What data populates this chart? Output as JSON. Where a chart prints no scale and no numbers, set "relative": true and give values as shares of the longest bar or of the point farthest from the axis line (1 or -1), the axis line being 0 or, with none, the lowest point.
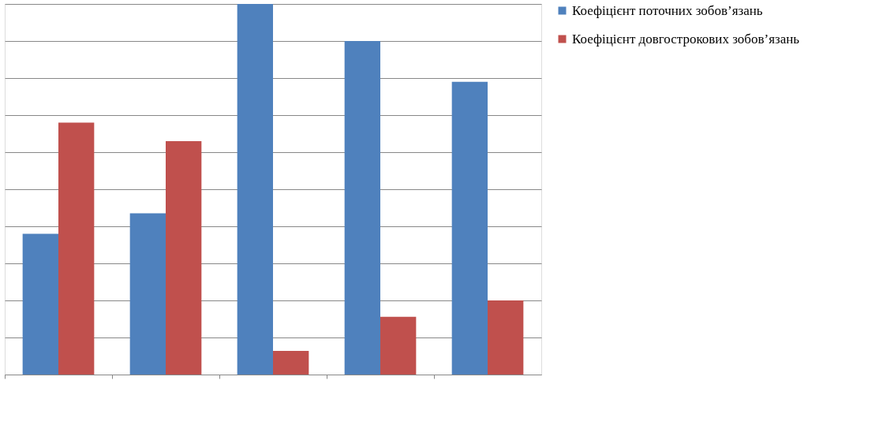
{
  "chart_data": {
    "type": "bar",
    "relative": true,
    "categories": [
      null,
      null,
      null,
      null,
      null
    ],
    "series": [
      {
        "name": "Коефіцієнт поточних зобов’язань",
        "color": "#4f81bd",
        "values": [
          0.38,
          0.435,
          1,
          0.9,
          0.79
        ]
      },
      {
        "name": "Коефіцієнт довгострокових зобов’язань",
        "color": "#c0504d",
        "values": [
          0.68,
          0.63,
          0.064,
          0.156,
          0.2
        ]
      }
    ],
    "grid": "y",
    "legend": "right",
    "tick_labels": false
  }
}
